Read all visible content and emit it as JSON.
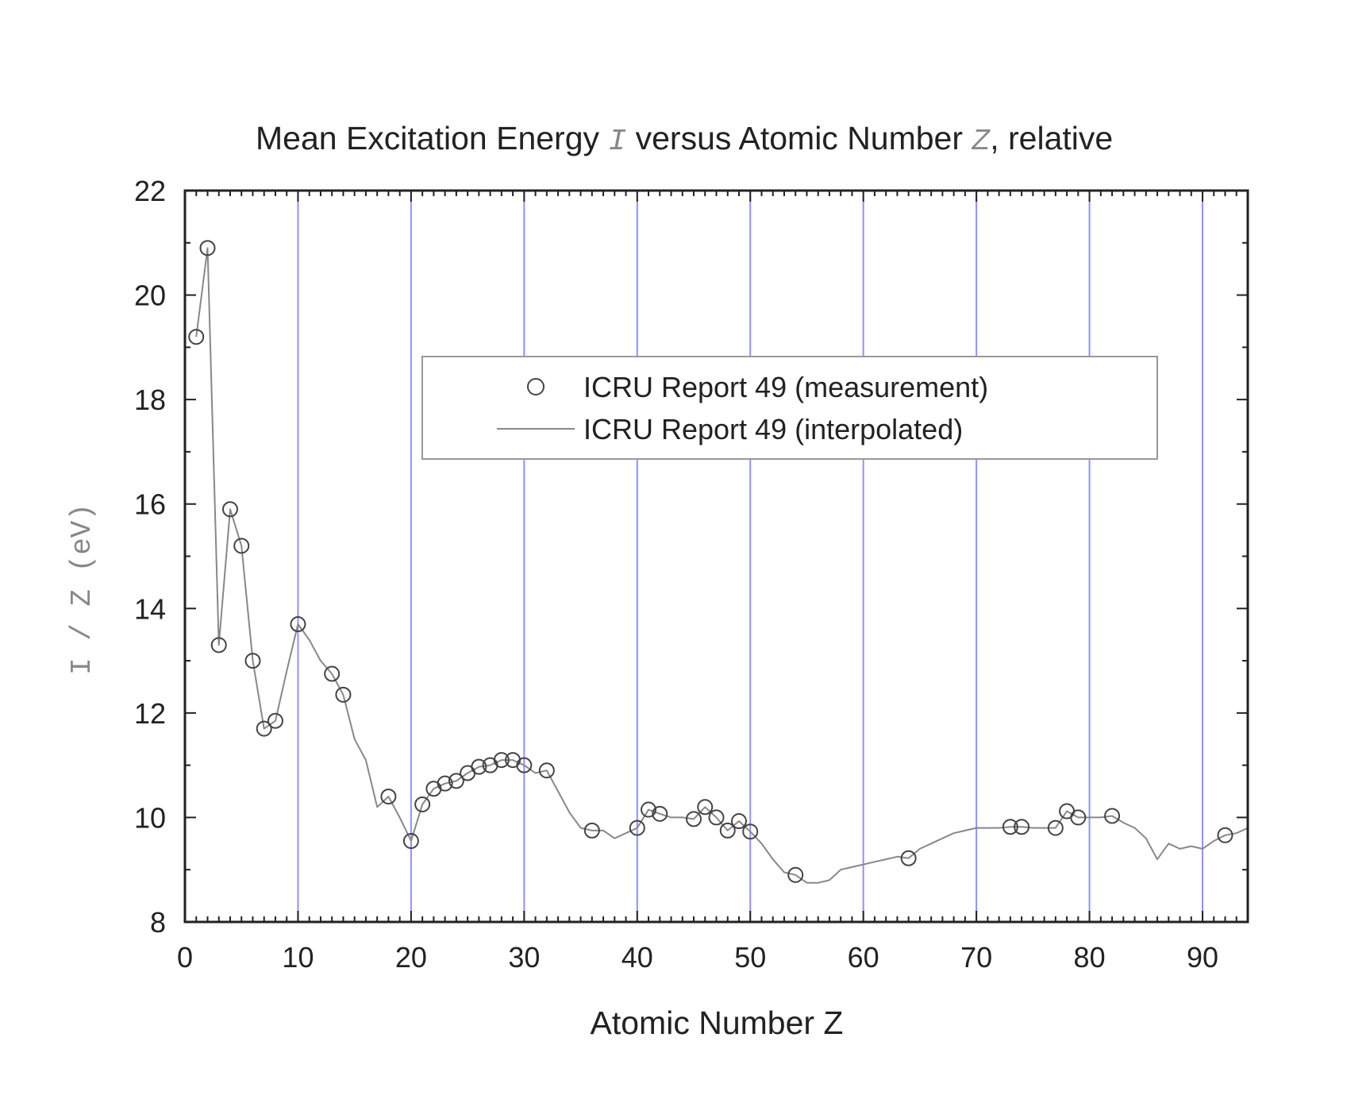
{
  "chart_data": {
    "type": "line",
    "title": {
      "prefix": "Mean Excitation Energy ",
      "var1": "I",
      "middle": " versus Atomic Number ",
      "var2": "Z",
      "suffix": ", relative"
    },
    "xlabel": "Atomic Number Z",
    "ylabel": "I / Z (eV)",
    "xlim": [
      0,
      94
    ],
    "ylim": [
      8,
      22
    ],
    "xticks": [
      0,
      10,
      20,
      30,
      40,
      50,
      60,
      70,
      80,
      90
    ],
    "yticks": [
      8,
      10,
      12,
      14,
      16,
      18,
      20,
      22
    ],
    "grid": "vertical major lines at every 10 (blue)",
    "grid_color": "#6b6bff",
    "legend_position": "upper-center",
    "series": [
      {
        "name": "ICRU Report 49 (measurement)",
        "style": "open circles",
        "color": "#444444",
        "points": [
          [
            1,
            19.2
          ],
          [
            2,
            20.9
          ],
          [
            3,
            13.3
          ],
          [
            4,
            15.9
          ],
          [
            5,
            15.2
          ],
          [
            6,
            13.0
          ],
          [
            7,
            11.7
          ],
          [
            8,
            11.85
          ],
          [
            10,
            13.7
          ],
          [
            13,
            12.75
          ],
          [
            14,
            12.35
          ],
          [
            18,
            10.4
          ],
          [
            20,
            9.55
          ],
          [
            21,
            10.25
          ],
          [
            22,
            10.55
          ],
          [
            23,
            10.65
          ],
          [
            24,
            10.7
          ],
          [
            25,
            10.85
          ],
          [
            26,
            10.97
          ],
          [
            27,
            11.0
          ],
          [
            28,
            11.1
          ],
          [
            29,
            11.1
          ],
          [
            30,
            11.0
          ],
          [
            32,
            10.9
          ],
          [
            36,
            9.75
          ],
          [
            40,
            9.8
          ],
          [
            41,
            10.15
          ],
          [
            42,
            10.07
          ],
          [
            45,
            9.97
          ],
          [
            46,
            10.2
          ],
          [
            47,
            10.0
          ],
          [
            48,
            9.75
          ],
          [
            49,
            9.93
          ],
          [
            50,
            9.73
          ],
          [
            54,
            8.9
          ],
          [
            64,
            9.22
          ],
          [
            73,
            9.82
          ],
          [
            74,
            9.82
          ],
          [
            77,
            9.8
          ],
          [
            78,
            10.12
          ],
          [
            79,
            10.0
          ],
          [
            82,
            10.03
          ],
          [
            92,
            9.66
          ]
        ]
      },
      {
        "name": "ICRU Report 49 (interpolated)",
        "style": "thin line",
        "color": "#888888",
        "points": [
          [
            1,
            19.2
          ],
          [
            2,
            20.9
          ],
          [
            3,
            13.3
          ],
          [
            4,
            15.9
          ],
          [
            5,
            15.2
          ],
          [
            6,
            13.0
          ],
          [
            7,
            11.7
          ],
          [
            8,
            11.85
          ],
          [
            9,
            12.8
          ],
          [
            10,
            13.7
          ],
          [
            11,
            13.4
          ],
          [
            12,
            13.0
          ],
          [
            13,
            12.75
          ],
          [
            14,
            12.35
          ],
          [
            15,
            11.5
          ],
          [
            16,
            11.1
          ],
          [
            17,
            10.2
          ],
          [
            18,
            10.4
          ],
          [
            19,
            10.0
          ],
          [
            20,
            9.55
          ],
          [
            21,
            10.25
          ],
          [
            22,
            10.55
          ],
          [
            23,
            10.65
          ],
          [
            24,
            10.7
          ],
          [
            25,
            10.85
          ],
          [
            26,
            10.97
          ],
          [
            27,
            11.0
          ],
          [
            28,
            11.1
          ],
          [
            29,
            11.1
          ],
          [
            30,
            11.0
          ],
          [
            31,
            10.85
          ],
          [
            32,
            10.9
          ],
          [
            33,
            10.5
          ],
          [
            34,
            10.1
          ],
          [
            35,
            9.8
          ],
          [
            36,
            9.75
          ],
          [
            37,
            9.75
          ],
          [
            38,
            9.6
          ],
          [
            39,
            9.7
          ],
          [
            40,
            9.8
          ],
          [
            41,
            10.15
          ],
          [
            42,
            10.07
          ],
          [
            43,
            10.0
          ],
          [
            44,
            10.0
          ],
          [
            45,
            9.97
          ],
          [
            46,
            10.2
          ],
          [
            47,
            10.0
          ],
          [
            48,
            9.75
          ],
          [
            49,
            9.93
          ],
          [
            50,
            9.73
          ],
          [
            51,
            9.5
          ],
          [
            52,
            9.2
          ],
          [
            53,
            8.95
          ],
          [
            54,
            8.9
          ],
          [
            55,
            8.75
          ],
          [
            56,
            8.75
          ],
          [
            57,
            8.8
          ],
          [
            58,
            9.0
          ],
          [
            59,
            9.05
          ],
          [
            60,
            9.1
          ],
          [
            61,
            9.15
          ],
          [
            62,
            9.2
          ],
          [
            63,
            9.25
          ],
          [
            64,
            9.22
          ],
          [
            65,
            9.4
          ],
          [
            66,
            9.5
          ],
          [
            67,
            9.6
          ],
          [
            68,
            9.7
          ],
          [
            69,
            9.75
          ],
          [
            70,
            9.8
          ],
          [
            71,
            9.8
          ],
          [
            72,
            9.8
          ],
          [
            73,
            9.82
          ],
          [
            74,
            9.82
          ],
          [
            75,
            9.8
          ],
          [
            76,
            9.8
          ],
          [
            77,
            9.8
          ],
          [
            78,
            10.12
          ],
          [
            79,
            10.0
          ],
          [
            80,
            10.0
          ],
          [
            81,
            10.0
          ],
          [
            82,
            10.03
          ],
          [
            83,
            9.9
          ],
          [
            84,
            9.8
          ],
          [
            85,
            9.6
          ],
          [
            86,
            9.2
          ],
          [
            87,
            9.5
          ],
          [
            88,
            9.4
          ],
          [
            89,
            9.45
          ],
          [
            90,
            9.4
          ],
          [
            91,
            9.55
          ],
          [
            92,
            9.66
          ],
          [
            93,
            9.7
          ],
          [
            94,
            9.8
          ]
        ]
      }
    ]
  }
}
